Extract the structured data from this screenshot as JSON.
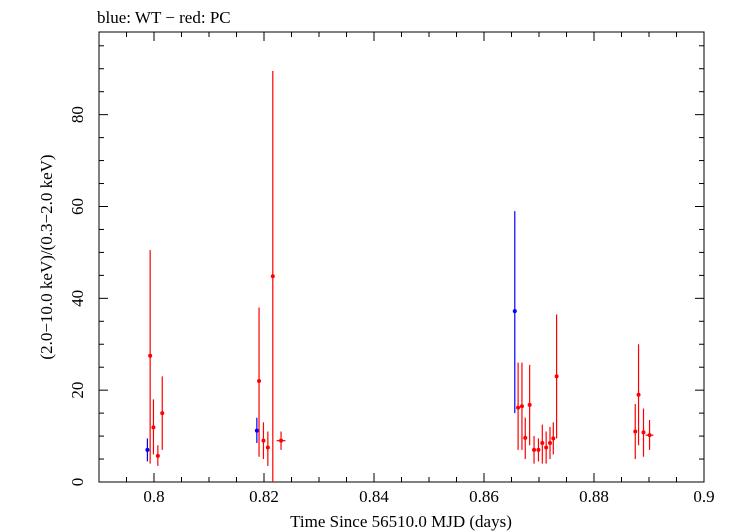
{
  "chart_data": {
    "type": "scatter",
    "title": "blue: WT − red: PC",
    "xlabel": "Time Since 56510.0 MJD (days)",
    "ylabel": "(2.0−10.0 keV)/(0.3−2.0 keV)",
    "xlim": [
      0.79,
      0.9
    ],
    "ylim": [
      0,
      98
    ],
    "xticks": [
      0.8,
      0.82,
      0.84,
      0.86,
      0.88,
      0.9
    ],
    "xtick_labels": [
      "0.8",
      "0.82",
      "0.84",
      "0.86",
      "0.88",
      "0.9"
    ],
    "yticks": [
      0,
      20,
      40,
      60,
      80
    ],
    "ytick_labels": [
      "0",
      "20",
      "40",
      "60",
      "80"
    ],
    "grid": false,
    "series": [
      {
        "color": "#0000ff",
        "points": [
          {
            "x": 0.7988,
            "y": 7.0,
            "ylo": 4.5,
            "yhi": 9.5,
            "xerr": 0.0
          },
          {
            "x": 0.8187,
            "y": 11.2,
            "ylo": 8.5,
            "yhi": 14.0,
            "xerr": 0.0
          },
          {
            "x": 0.8656,
            "y": 37.2,
            "ylo": 15.0,
            "yhi": 59.0,
            "xerr": 0.0
          }
        ]
      },
      {
        "color": "#ff0000",
        "points": [
          {
            "x": 0.7993,
            "y": 27.5,
            "ylo": 4.0,
            "yhi": 50.5,
            "xerr": 0.0002
          },
          {
            "x": 0.7999,
            "y": 11.9,
            "ylo": 6.0,
            "yhi": 18.0,
            "xerr": 0.0002
          },
          {
            "x": 0.8007,
            "y": 5.7,
            "ylo": 3.5,
            "yhi": 8.0,
            "xerr": 0.0003
          },
          {
            "x": 0.8015,
            "y": 15.0,
            "ylo": 7.0,
            "yhi": 23.0,
            "xerr": 0.0002
          },
          {
            "x": 0.8191,
            "y": 22.0,
            "ylo": 5.5,
            "yhi": 38.0,
            "xerr": 0.0002
          },
          {
            "x": 0.8199,
            "y": 9.0,
            "ylo": 5.0,
            "yhi": 13.0,
            "xerr": 0.0002
          },
          {
            "x": 0.8207,
            "y": 7.5,
            "ylo": 3.5,
            "yhi": 11.0,
            "xerr": 0.0003
          },
          {
            "x": 0.8216,
            "y": 44.8,
            "ylo": 0.0,
            "yhi": 89.5,
            "xerr": 0.0002
          },
          {
            "x": 0.8231,
            "y": 9.0,
            "ylo": 7.0,
            "yhi": 11.0,
            "xerr": 0.0008
          },
          {
            "x": 0.8662,
            "y": 16.2,
            "ylo": 7.0,
            "yhi": 26.0,
            "xerr": 0.0002
          },
          {
            "x": 0.8669,
            "y": 16.5,
            "ylo": 7.0,
            "yhi": 26.0,
            "xerr": 0.0002
          },
          {
            "x": 0.8675,
            "y": 9.6,
            "ylo": 5.0,
            "yhi": 14.0,
            "xerr": 0.0002
          },
          {
            "x": 0.8683,
            "y": 16.8,
            "ylo": 8.0,
            "yhi": 25.5,
            "xerr": 0.0002
          },
          {
            "x": 0.8691,
            "y": 7.0,
            "ylo": 4.0,
            "yhi": 10.0,
            "xerr": 0.0002
          },
          {
            "x": 0.8699,
            "y": 7.0,
            "ylo": 4.5,
            "yhi": 9.5,
            "xerr": 0.0002
          },
          {
            "x": 0.8706,
            "y": 8.5,
            "ylo": 4.0,
            "yhi": 12.5,
            "xerr": 0.0002
          },
          {
            "x": 0.8713,
            "y": 7.5,
            "ylo": 4.0,
            "yhi": 11.0,
            "xerr": 0.0002
          },
          {
            "x": 0.872,
            "y": 8.5,
            "ylo": 5.0,
            "yhi": 12.0,
            "xerr": 0.0002
          },
          {
            "x": 0.8726,
            "y": 9.5,
            "ylo": 6.0,
            "yhi": 13.0,
            "xerr": 0.0002
          },
          {
            "x": 0.8732,
            "y": 23.0,
            "ylo": 9.5,
            "yhi": 36.5,
            "xerr": 0.0002
          },
          {
            "x": 0.8875,
            "y": 11.0,
            "ylo": 5.0,
            "yhi": 17.0,
            "xerr": 0.0002
          },
          {
            "x": 0.8881,
            "y": 19.0,
            "ylo": 8.0,
            "yhi": 30.0,
            "xerr": 0.0002
          },
          {
            "x": 0.889,
            "y": 10.8,
            "ylo": 5.5,
            "yhi": 16.0,
            "xerr": 0.0002
          },
          {
            "x": 0.8901,
            "y": 10.2,
            "ylo": 7.0,
            "yhi": 13.5,
            "xerr": 0.0007
          }
        ]
      }
    ]
  }
}
